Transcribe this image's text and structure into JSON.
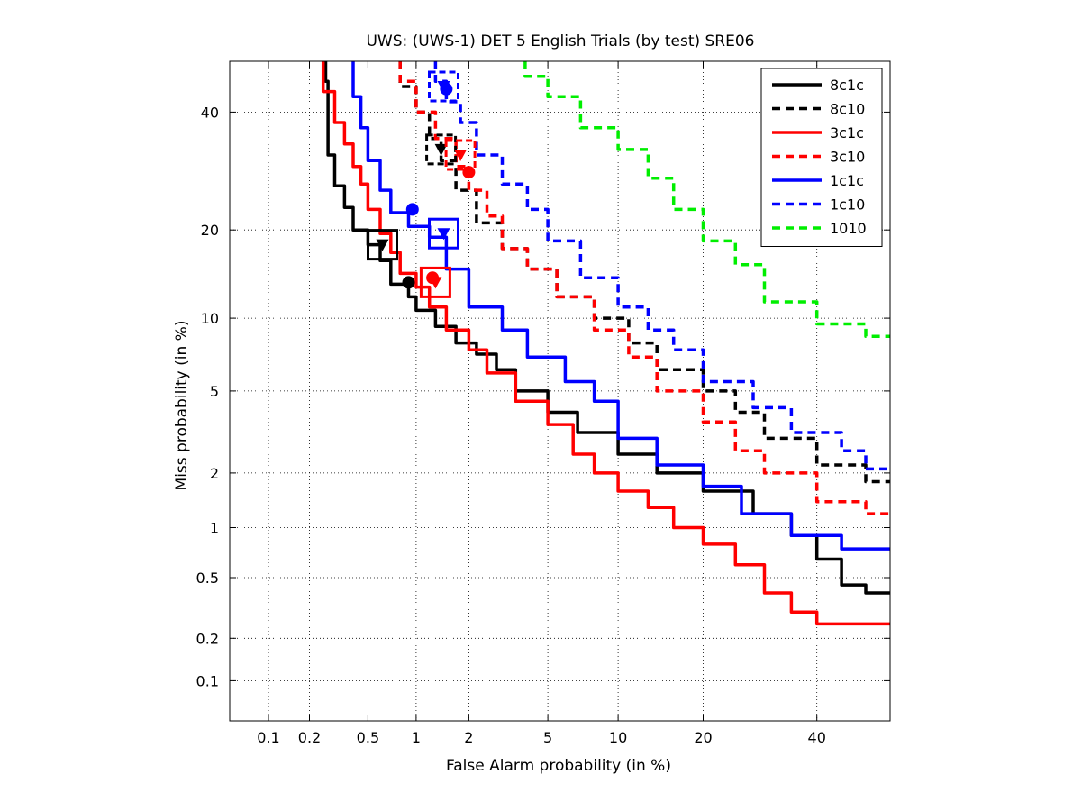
{
  "chart_data": {
    "type": "line",
    "title": "UWS: (UWS-1) DET 5 English Trials (by test) SRE06",
    "xlabel": "False Alarm probability (in %)",
    "ylabel": "Miss probability (in %)",
    "scale": "normal-deviate (DET)",
    "xlim": [
      0.05,
      55
    ],
    "ylim": [
      0.05,
      50
    ],
    "xticks": [
      0.1,
      0.2,
      0.5,
      1,
      2,
      5,
      10,
      20,
      40
    ],
    "xtick_labels": [
      "0.1",
      "0.2",
      "0.5",
      "1",
      "2",
      "5",
      "10",
      "20",
      "40"
    ],
    "yticks": [
      0.1,
      0.2,
      0.5,
      1,
      2,
      5,
      10,
      20,
      40
    ],
    "ytick_labels": [
      "0.1",
      "0.2",
      "0.5",
      "1",
      "2",
      "5",
      "10",
      "20",
      "40"
    ],
    "grid": true,
    "legend_position": "top-right",
    "series": [
      {
        "name": "8c1c",
        "color": "#000000",
        "dash": false,
        "x": [
          0.26,
          0.27,
          0.3,
          0.35,
          0.4,
          0.5,
          0.6,
          0.7,
          0.9,
          1.0,
          1.3,
          1.7,
          2.2,
          2.8,
          3.5,
          5,
          6.8,
          10,
          14,
          20,
          28,
          35,
          40,
          45,
          50,
          55
        ],
        "y": [
          50,
          46,
          32,
          26.7,
          23.3,
          20,
          18,
          16,
          13.3,
          12,
          10.7,
          9.3,
          8,
          7.2,
          6.2,
          5,
          4,
          3.2,
          2.5,
          2,
          1.6,
          1.2,
          0.9,
          0.65,
          0.45,
          0.4
        ],
        "act": {
          "x": 0.62,
          "y": 18
        },
        "min": {
          "x": 0.9,
          "y": 13.5
        }
      },
      {
        "name": "8c10",
        "color": "#000000",
        "dash": true,
        "x": [
          0.8,
          1.0,
          1.2,
          1.4,
          1.7,
          2.2,
          3,
          4,
          5.5,
          8,
          11,
          14,
          20,
          25,
          30,
          40,
          50,
          55
        ],
        "y": [
          50,
          45,
          40,
          35,
          31,
          26,
          21,
          17.5,
          15,
          12,
          10,
          8,
          6.2,
          5,
          4,
          3,
          2.2,
          1.8
        ],
        "act": {
          "x": 1.4,
          "y": 33
        },
        "min": null
      },
      {
        "name": "3c1c",
        "color": "#ff0000",
        "dash": false,
        "x": [
          0.25,
          0.3,
          0.35,
          0.4,
          0.45,
          0.5,
          0.6,
          0.7,
          0.8,
          1.0,
          1.2,
          1.5,
          2.0,
          2.5,
          3.5,
          5,
          6.5,
          8,
          10,
          13,
          16,
          20,
          25,
          30,
          35,
          40,
          55
        ],
        "y": [
          50,
          44,
          38,
          34,
          30,
          27,
          23,
          19.5,
          17,
          14.5,
          13,
          11,
          9,
          7.5,
          6,
          4.5,
          3.5,
          2.5,
          2,
          1.6,
          1.3,
          1.0,
          0.8,
          0.6,
          0.4,
          0.3,
          0.25
        ],
        "act": {
          "x": 1.3,
          "y": 13.5
        },
        "min": {
          "x": 1.25,
          "y": 14
        }
      },
      {
        "name": "3c10",
        "color": "#ff0000",
        "dash": true,
        "x": [
          0.8,
          1.0,
          1.3,
          1.7,
          2.0,
          2.5,
          3,
          4,
          5.5,
          8,
          11,
          14,
          20,
          25,
          30,
          40,
          50,
          55
        ],
        "y": [
          50,
          46,
          40,
          35,
          30,
          26,
          22,
          17.5,
          15,
          12,
          9,
          7,
          5,
          3.6,
          2.6,
          2.0,
          1.4,
          1.2
        ],
        "act": {
          "x": 1.8,
          "y": 32
        },
        "min": {
          "x": 2.0,
          "y": 29
        }
      },
      {
        "name": "1c1c",
        "color": "#0000ff",
        "dash": false,
        "x": [
          0.4,
          0.45,
          0.5,
          0.6,
          0.7,
          0.9,
          1.2,
          1.5,
          2.0,
          3.0,
          4.0,
          6.0,
          8.0,
          10,
          14,
          20,
          26,
          35,
          45,
          55
        ],
        "y": [
          50,
          43,
          37,
          31,
          26,
          22.5,
          20.5,
          19,
          15,
          11,
          9,
          7,
          5.5,
          4.5,
          3,
          2.2,
          1.7,
          1.2,
          0.9,
          0.75
        ],
        "act": {
          "x": 1.45,
          "y": 19.5
        },
        "min": {
          "x": 0.95,
          "y": 23
        }
      },
      {
        "name": "1c10",
        "color": "#0000ff",
        "dash": true,
        "x": [
          1.3,
          1.5,
          1.8,
          2.2,
          3,
          4,
          5,
          7,
          10,
          13,
          16,
          20,
          28,
          35,
          45,
          50,
          55
        ],
        "y": [
          50,
          46,
          42,
          38,
          32,
          27,
          23,
          18.5,
          14,
          11,
          9,
          7.5,
          5.5,
          4.2,
          3.2,
          2.6,
          2.1
        ],
        "act": {
          "x": 1.45,
          "y": 45
        },
        "min": {
          "x": 1.5,
          "y": 44.5
        }
      },
      {
        "name": "1010",
        "color": "#00ee00",
        "dash": true,
        "x": [
          3.9,
          5,
          7,
          10,
          13,
          16,
          20,
          25,
          30,
          40,
          50,
          55
        ],
        "y": [
          50,
          47,
          43,
          37,
          33,
          28,
          23,
          18.5,
          15.5,
          11.5,
          9.5,
          8.5
        ],
        "act": null,
        "min": null
      }
    ]
  }
}
